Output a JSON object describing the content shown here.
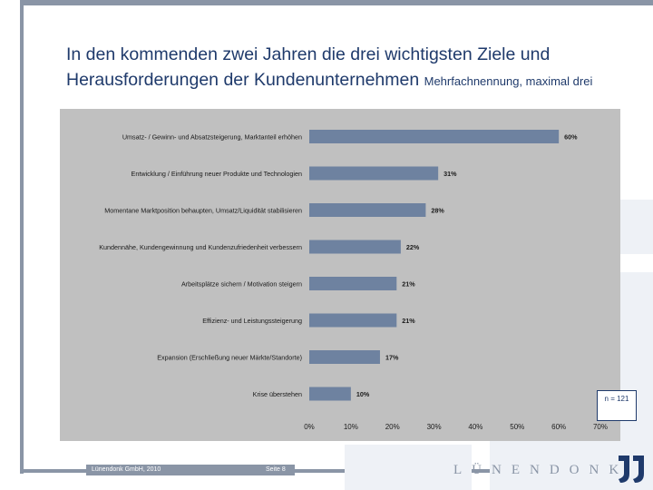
{
  "title": {
    "main": "In den kommenden zwei Jahren die drei wichtigsten Ziele und Herausforderungen der Kundenunternehmen",
    "sub": "Mehrfachnennung, maximal drei"
  },
  "chart_data": {
    "type": "bar",
    "orientation": "horizontal",
    "categories": [
      "Umsatz- / Gewinn- und Absatzsteigerung, Marktanteil erhöhen",
      "Entwicklung / Einführung neuer Produkte und Technologien",
      "Momentane Marktposition behaupten, Umsatz/Liquidität stabilisieren",
      "Kundennähe, Kundengewinnung und Kundenzufriedenheit verbessern",
      "Arbeitsplätze sichern / Motivation steigern",
      "Effizienz- und Leistungssteigerung",
      "Expansion (Erschließung neuer Märkte/Standorte)",
      "Krise überstehen"
    ],
    "values": [
      60,
      31,
      28,
      22,
      21,
      21,
      17,
      10
    ],
    "value_labels": [
      "60%",
      "31%",
      "28%",
      "22%",
      "21%",
      "21%",
      "17%",
      "10%"
    ],
    "xlim": [
      0,
      70
    ],
    "xticks": [
      "0%",
      "10%",
      "20%",
      "30%",
      "40%",
      "50%",
      "60%",
      "70%"
    ],
    "grid": false,
    "bar_color": "#6e82a0",
    "background_color": "#c0c0c0"
  },
  "n_label": "n = 121",
  "footer": {
    "company": "Lünendonk GmbH, 2010",
    "page": "Seite 8"
  },
  "logo": {
    "text": "LÜNENDONK",
    "color": "#8a95a6",
    "mark_color": "#1f3a6b"
  }
}
